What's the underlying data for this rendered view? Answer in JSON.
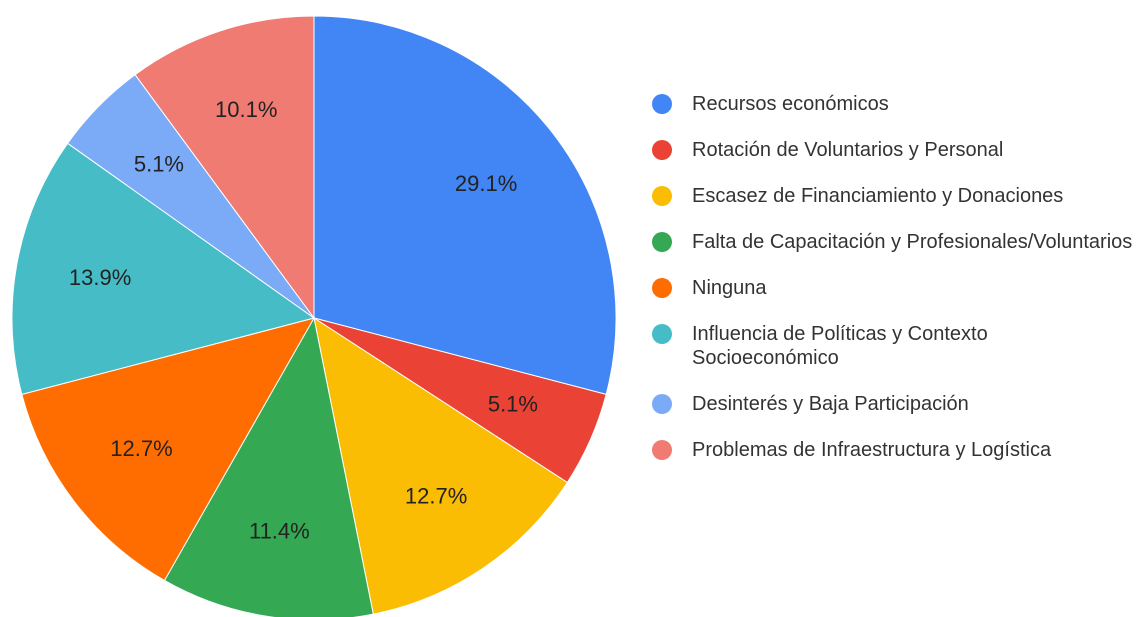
{
  "chart_data": {
    "type": "pie",
    "categories": [
      "Recursos económicos",
      "Rotación de Voluntarios y Personal",
      "Escasez de Financiamiento y Donaciones",
      "Falta de Capacitación y Profesionales/Voluntarios",
      "Ninguna",
      "Influencia de Políticas y Contexto Socioeconómico",
      "Desinterés y Baja Participación",
      "Problemas de Infraestructura y Logística"
    ],
    "values": [
      29.1,
      5.1,
      12.7,
      11.4,
      12.7,
      13.9,
      5.1,
      10.1
    ],
    "value_labels": [
      "29.1%",
      "5.1%",
      "12.7%",
      "11.4%",
      "12.7%",
      "13.9%",
      "5.1%",
      "10.1%"
    ],
    "colors": [
      "#4285f4",
      "#ea4335",
      "#fbbc04",
      "#34a853",
      "#ff6d01",
      "#46bdc6",
      "#7baaf7",
      "#f07b72"
    ],
    "legend": "right"
  }
}
